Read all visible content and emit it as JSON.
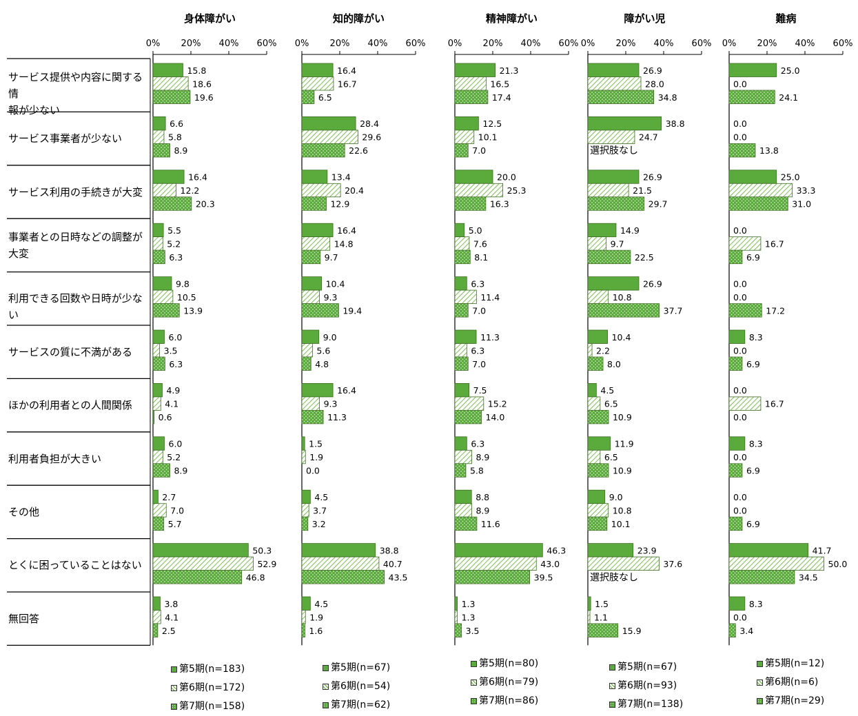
{
  "colors": {
    "s5": "#5aaa3c",
    "s6": "#7abf52",
    "s7": "#5aaa3c",
    "border": "#3d6b22"
  },
  "chart_data": {
    "type": "bar",
    "orientation": "horizontal",
    "categories": [
      "サービス提供や内容に関する情報が少ない",
      "サービス事業者が少ない",
      "サービス利用の手続きが大変",
      "事業者との日時などの調整が大変",
      "利用できる回数や日時が少ない",
      "サービスの質に不満がある",
      "ほかの利用者との人間関係",
      "利用者負担が大きい",
      "その他",
      "とくに困っていることはない",
      "無回答"
    ],
    "category_lines": [
      [
        "サービス提供や内容に関する情",
        "報が少ない"
      ],
      [
        "サービス事業者が少ない"
      ],
      [
        "サービス利用の手続きが大変"
      ],
      [
        "事業者との日時などの調整が",
        "大変"
      ],
      [
        "利用できる回数や日時が少ない"
      ],
      [
        "サービスの質に不満がある"
      ],
      [
        "ほかの利用者との人間関係"
      ],
      [
        "利用者負担が大きい"
      ],
      [
        "その他"
      ],
      [
        "とくに困っていることはない"
      ],
      [
        "無回答"
      ]
    ],
    "xlim": [
      0,
      60
    ],
    "xticks": [
      "0%",
      "20%",
      "40%",
      "60%"
    ],
    "panels": [
      {
        "title": "身体障がい",
        "series": [
          {
            "name": "第5期(n=183)",
            "values": [
              15.8,
              6.6,
              16.4,
              5.5,
              9.8,
              6.0,
              4.9,
              6.0,
              2.7,
              50.3,
              3.8
            ]
          },
          {
            "name": "第6期(n=172)",
            "values": [
              18.6,
              5.8,
              12.2,
              5.2,
              10.5,
              3.5,
              4.1,
              5.2,
              7.0,
              52.9,
              4.1
            ]
          },
          {
            "name": "第7期(n=158)",
            "values": [
              19.6,
              8.9,
              20.3,
              6.3,
              13.9,
              6.3,
              0.6,
              8.9,
              5.7,
              46.8,
              2.5
            ]
          }
        ]
      },
      {
        "title": "知的障がい",
        "series": [
          {
            "name": "第5期(n=67)",
            "values": [
              16.4,
              28.4,
              13.4,
              16.4,
              10.4,
              9.0,
              16.4,
              1.5,
              4.5,
              38.8,
              4.5
            ]
          },
          {
            "name": "第6期(n=54)",
            "values": [
              16.7,
              29.6,
              20.4,
              14.8,
              9.3,
              5.6,
              9.3,
              1.9,
              3.7,
              40.7,
              1.9
            ]
          },
          {
            "name": "第7期(n=62)",
            "values": [
              6.5,
              22.6,
              12.9,
              9.7,
              19.4,
              4.8,
              11.3,
              0.0,
              3.2,
              43.5,
              1.6
            ]
          }
        ]
      },
      {
        "title": "精神障がい",
        "series": [
          {
            "name": "第5期(n=80)",
            "values": [
              21.3,
              12.5,
              20.0,
              5.0,
              6.3,
              11.3,
              7.5,
              6.3,
              8.8,
              46.3,
              1.3
            ]
          },
          {
            "name": "第6期(n=79)",
            "values": [
              16.5,
              10.1,
              25.3,
              7.6,
              11.4,
              6.3,
              15.2,
              8.9,
              8.9,
              43.0,
              1.3
            ]
          },
          {
            "name": "第7期(n=86)",
            "values": [
              17.4,
              7.0,
              16.3,
              8.1,
              7.0,
              7.0,
              14.0,
              5.8,
              11.6,
              39.5,
              3.5
            ]
          }
        ]
      },
      {
        "title": "障がい児",
        "series": [
          {
            "name": "第5期(n=67)",
            "values": [
              26.9,
              38.8,
              26.9,
              14.9,
              26.9,
              10.4,
              4.5,
              11.9,
              9.0,
              23.9,
              1.5
            ]
          },
          {
            "name": "第6期(n=93)",
            "values": [
              28.0,
              24.7,
              21.5,
              9.7,
              10.8,
              2.2,
              6.5,
              6.5,
              10.8,
              37.6,
              1.1
            ]
          },
          {
            "name": "第7期(n=138)",
            "values": [
              34.8,
              null,
              29.7,
              22.5,
              37.7,
              8.0,
              10.9,
              10.9,
              10.1,
              null,
              15.9
            ]
          }
        ],
        "notes": [
          {
            "category": 1,
            "text": "選択肢なし"
          },
          {
            "category": 9,
            "text": "選択肢なし"
          }
        ]
      },
      {
        "title": "難病",
        "series": [
          {
            "name": "第5期(n=12)",
            "values": [
              25.0,
              0.0,
              25.0,
              0.0,
              0.0,
              8.3,
              0.0,
              8.3,
              0.0,
              41.7,
              8.3
            ]
          },
          {
            "name": "第6期(n=6)",
            "values": [
              0.0,
              0.0,
              33.3,
              16.7,
              0.0,
              0.0,
              16.7,
              0.0,
              0.0,
              50.0,
              0.0
            ]
          },
          {
            "name": "第7期(n=29)",
            "values": [
              24.1,
              13.8,
              31.0,
              6.9,
              17.2,
              6.9,
              0.0,
              6.9,
              6.9,
              34.5,
              3.4
            ]
          }
        ]
      }
    ]
  }
}
